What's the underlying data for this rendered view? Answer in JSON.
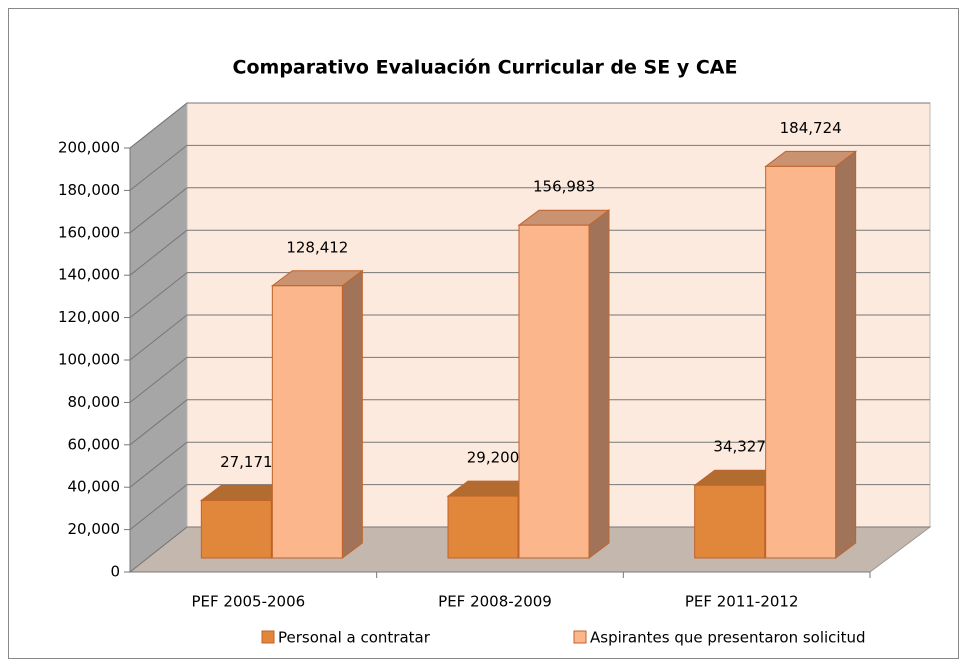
{
  "chart_data": {
    "type": "bar3d",
    "title": "Comparativo Evaluación Curricular de SE y CAE",
    "categories": [
      "PEF 2005-2006",
      "PEF 2008-2009",
      "PEF 2011-2012"
    ],
    "series": [
      {
        "name": "Personal a contratar",
        "color": "#e0873c",
        "values": [
          27171,
          29200,
          34327
        ],
        "value_labels": [
          "27,171",
          "29,200",
          "34,327"
        ]
      },
      {
        "name": "Aspirantes que presentaron solicitud",
        "color": "#fbb68c",
        "values": [
          128412,
          156983,
          184724
        ],
        "value_labels": [
          "128,412",
          "156,983",
          "184,724"
        ]
      }
    ],
    "ylim": [
      0,
      200000
    ],
    "yticks": [
      {
        "value": 0,
        "label": "0"
      },
      {
        "value": 20000,
        "label": "20,000"
      },
      {
        "value": 40000,
        "label": "40,000"
      },
      {
        "value": 60000,
        "label": "60,000"
      },
      {
        "value": 80000,
        "label": "80,000"
      },
      {
        "value": 100000,
        "label": "100,000"
      },
      {
        "value": 120000,
        "label": "120,000"
      },
      {
        "value": 140000,
        "label": "140,000"
      },
      {
        "value": 160000,
        "label": "160,000"
      },
      {
        "value": 180000,
        "label": "180,000"
      },
      {
        "value": 200000,
        "label": "200,000"
      }
    ],
    "grid": true,
    "legend": "bottom"
  }
}
